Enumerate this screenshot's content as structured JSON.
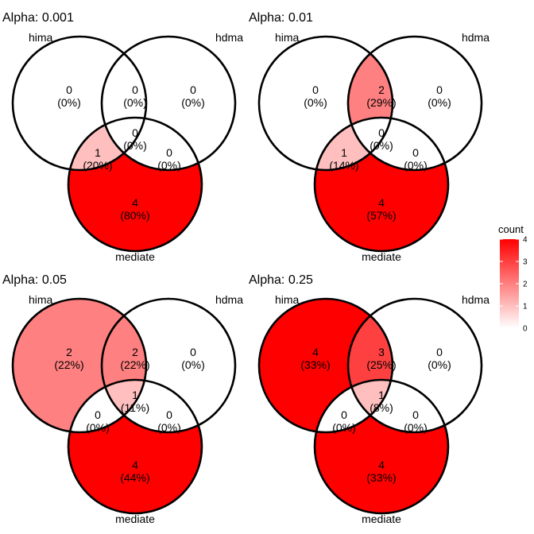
{
  "chart_data": [
    {
      "type": "venn",
      "title": "Alpha: 0.001",
      "sets": [
        "hima",
        "hdma",
        "mediate"
      ],
      "regions": [
        {
          "id": "hima_only",
          "count": 0,
          "pct": "(0%)"
        },
        {
          "id": "hima_hdma",
          "count": 0,
          "pct": "(0%)"
        },
        {
          "id": "hdma_only",
          "count": 0,
          "pct": "(0%)"
        },
        {
          "id": "all",
          "count": 0,
          "pct": "(0%)"
        },
        {
          "id": "hima_mediate",
          "count": 1,
          "pct": "(20%)"
        },
        {
          "id": "hdma_mediate",
          "count": 0,
          "pct": "(0%)"
        },
        {
          "id": "mediate_only",
          "count": 4,
          "pct": "(80%)"
        }
      ]
    },
    {
      "type": "venn",
      "title": "Alpha: 0.01",
      "sets": [
        "hima",
        "hdma",
        "mediate"
      ],
      "regions": [
        {
          "id": "hima_only",
          "count": 0,
          "pct": "(0%)"
        },
        {
          "id": "hima_hdma",
          "count": 2,
          "pct": "(29%)"
        },
        {
          "id": "hdma_only",
          "count": 0,
          "pct": "(0%)"
        },
        {
          "id": "all",
          "count": 0,
          "pct": "(0%)"
        },
        {
          "id": "hima_mediate",
          "count": 1,
          "pct": "(14%)"
        },
        {
          "id": "hdma_mediate",
          "count": 0,
          "pct": "(0%)"
        },
        {
          "id": "mediate_only",
          "count": 4,
          "pct": "(57%)"
        }
      ]
    },
    {
      "type": "venn",
      "title": "Alpha: 0.05",
      "sets": [
        "hima",
        "hdma",
        "mediate"
      ],
      "regions": [
        {
          "id": "hima_only",
          "count": 2,
          "pct": "(22%)"
        },
        {
          "id": "hima_hdma",
          "count": 2,
          "pct": "(22%)"
        },
        {
          "id": "hdma_only",
          "count": 0,
          "pct": "(0%)"
        },
        {
          "id": "all",
          "count": 1,
          "pct": "(11%)"
        },
        {
          "id": "hima_mediate",
          "count": 0,
          "pct": "(0%)"
        },
        {
          "id": "hdma_mediate",
          "count": 0,
          "pct": "(0%)"
        },
        {
          "id": "mediate_only",
          "count": 4,
          "pct": "(44%)"
        }
      ]
    },
    {
      "type": "venn",
      "title": "Alpha: 0.25",
      "sets": [
        "hima",
        "hdma",
        "mediate"
      ],
      "regions": [
        {
          "id": "hima_only",
          "count": 4,
          "pct": "(33%)"
        },
        {
          "id": "hima_hdma",
          "count": 3,
          "pct": "(25%)"
        },
        {
          "id": "hdma_only",
          "count": 0,
          "pct": "(0%)"
        },
        {
          "id": "all",
          "count": 1,
          "pct": "(8%)"
        },
        {
          "id": "hima_mediate",
          "count": 0,
          "pct": "(0%)"
        },
        {
          "id": "hdma_mediate",
          "count": 0,
          "pct": "(0%)"
        },
        {
          "id": "mediate_only",
          "count": 4,
          "pct": "(33%)"
        }
      ]
    }
  ],
  "legend": {
    "title": "count",
    "ticks": [
      "0",
      "1",
      "2",
      "3",
      "4"
    ],
    "range": [
      0,
      4
    ],
    "placement": "right",
    "colors": {
      "low": "#ffffff",
      "high": "#ff0000"
    }
  },
  "colors": {
    "outline": "#000000",
    "background": "#ffffff"
  }
}
